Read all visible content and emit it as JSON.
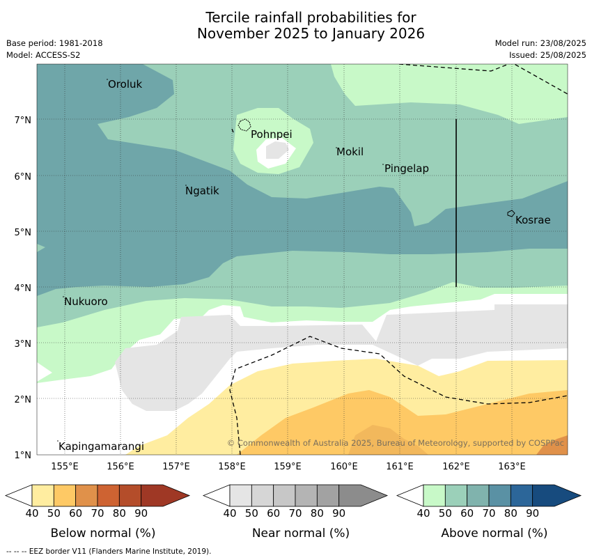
{
  "title_line1": "Tercile rainfall probabilities for",
  "title_line2": "November 2025 to January 2026",
  "base_period": "Base period: 1981-2018",
  "model": "Model: ACCESS-S2",
  "model_run": "Model run: 23/08/2025",
  "issued": "Issued: 25/08/2025",
  "copyright": "© Commonwealth of Australia 2025, Bureau of Meteorology, supported by COSPPac",
  "footer": "--  --  -- EEZ border V11 (Flanders Marine Institute, 2019).",
  "places": {
    "oroluk": "Oroluk",
    "pohnpei": "Pohnpei",
    "mokil": "Mokil",
    "pingelap": "Pingelap",
    "ngatik": "Ngatik",
    "kosrae": "Kosrae",
    "nukuoro": "Nukuoro",
    "kapingamarangi": "Kapingamarangi"
  },
  "lat_labels": [
    "7°N",
    "6°N",
    "5°N",
    "4°N",
    "3°N",
    "2°N",
    "1°N"
  ],
  "lon_labels": [
    "155°E",
    "156°E",
    "157°E",
    "158°E",
    "159°E",
    "160°E",
    "161°E",
    "162°E",
    "163°E"
  ],
  "colorbars": {
    "below": {
      "label": "Below normal (%)",
      "ticks": [
        "40",
        "50",
        "60",
        "70",
        "80",
        "90"
      ],
      "colors": [
        "#ffeda0",
        "#fec965",
        "#e0914a",
        "#ce6332",
        "#b44d2a",
        "#9f3825"
      ]
    },
    "near": {
      "label": "Near normal (%)",
      "ticks": [
        "40",
        "50",
        "60",
        "70",
        "80",
        "90"
      ],
      "colors": [
        "#e5e5e5",
        "#d6d6d6",
        "#c7c7c7",
        "#b4b4b4",
        "#a2a2a2",
        "#8c8c8c"
      ]
    },
    "above": {
      "label": "Above normal (%)",
      "ticks": [
        "40",
        "50",
        "60",
        "70",
        "80",
        "90"
      ],
      "colors": [
        "#c8f9c8",
        "#9bd0b9",
        "#80b3ad",
        "#5a91a4",
        "#2c6699",
        "#174b7e"
      ]
    }
  }
}
